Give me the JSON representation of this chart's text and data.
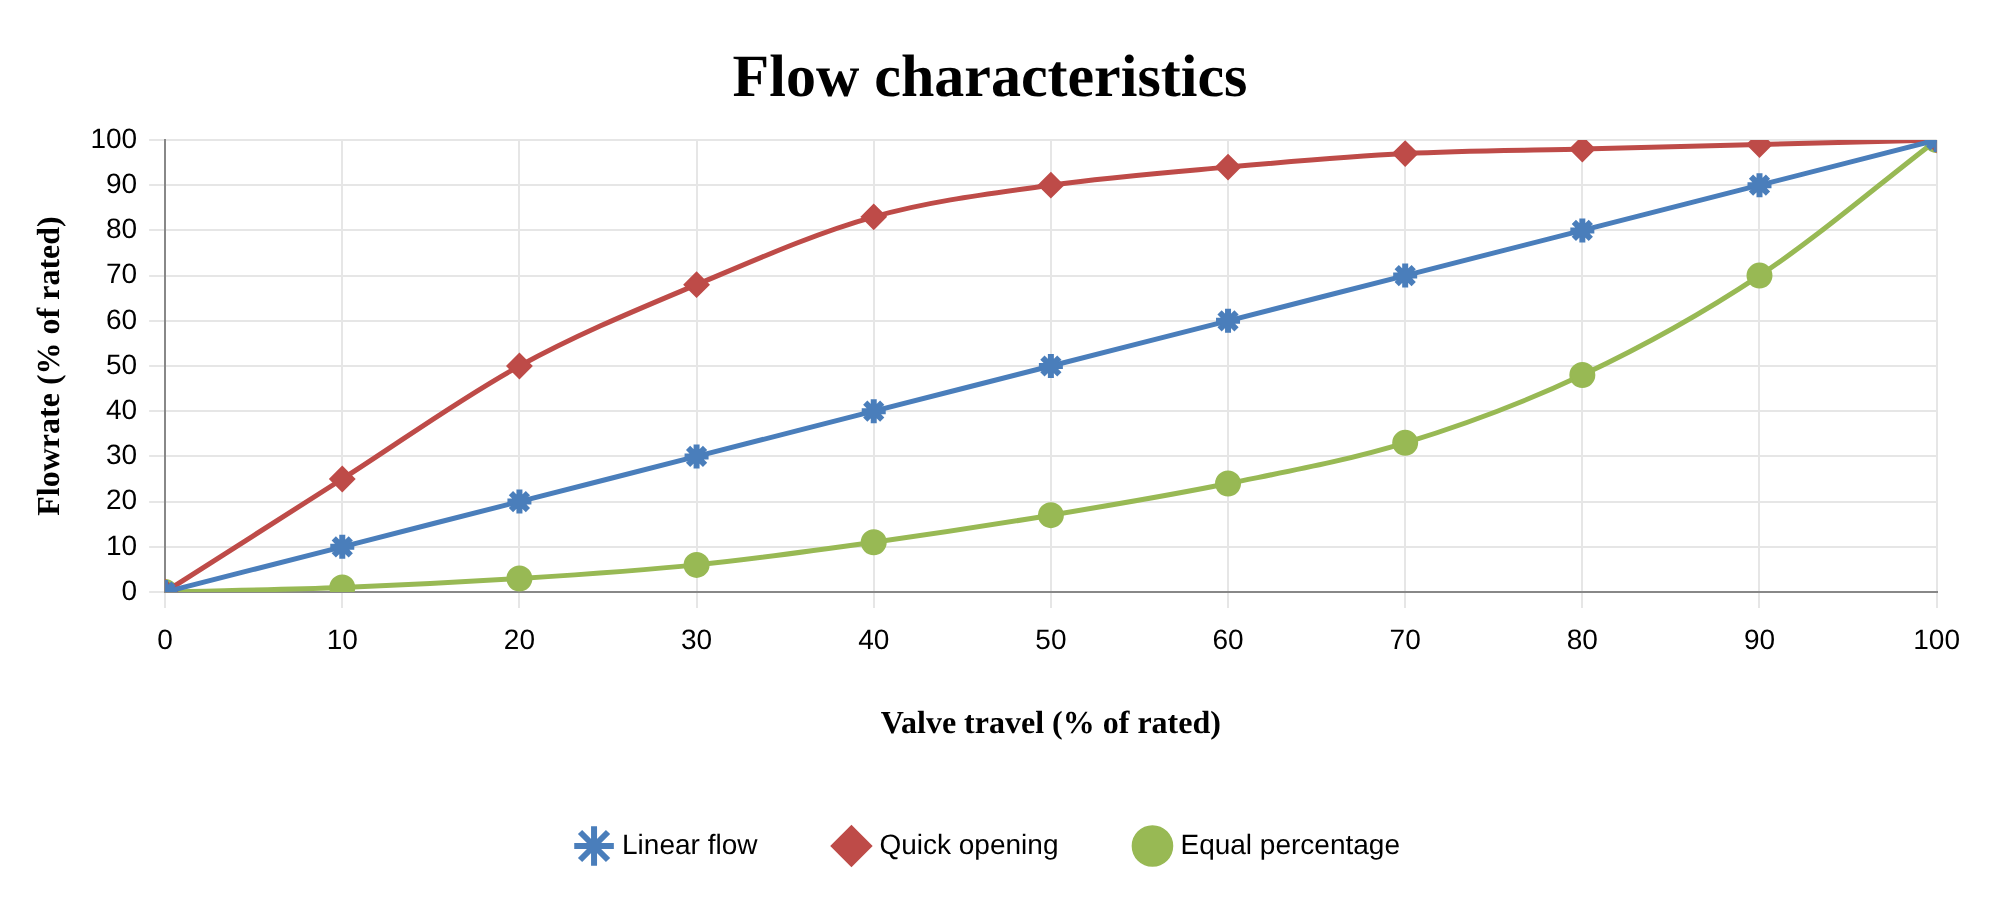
{
  "chart_data": {
    "type": "line",
    "title": "Flow characteristics",
    "xlabel": "Valve travel (% of rated)",
    "ylabel": "Flowrate (% of rated)",
    "x": [
      0,
      10,
      20,
      30,
      40,
      50,
      60,
      70,
      80,
      90,
      100
    ],
    "series": [
      {
        "name": "Linear flow",
        "color": "#4a7ebb",
        "marker": "cross",
        "values": [
          0,
          10,
          20,
          30,
          40,
          50,
          60,
          70,
          80,
          90,
          100
        ]
      },
      {
        "name": "Quick opening",
        "color": "#be4b48",
        "marker": "diamond",
        "values": [
          0,
          25,
          50,
          68,
          83,
          90,
          94,
          97,
          98,
          99,
          100
        ]
      },
      {
        "name": "Equal percentage",
        "color": "#98b954",
        "marker": "circle",
        "values": [
          0,
          1,
          3,
          6,
          11,
          17,
          24,
          33,
          48,
          70,
          100
        ]
      }
    ],
    "xlim": [
      0,
      100
    ],
    "xticks": [
      0,
      10,
      20,
      30,
      40,
      50,
      60,
      70,
      80,
      90,
      100
    ],
    "ylim": [
      0,
      100
    ],
    "yticks": [
      0,
      10,
      20,
      30,
      40,
      50,
      60,
      70,
      80,
      90,
      100
    ],
    "grid": true,
    "legend": "bottom",
    "line_style": "solid"
  }
}
